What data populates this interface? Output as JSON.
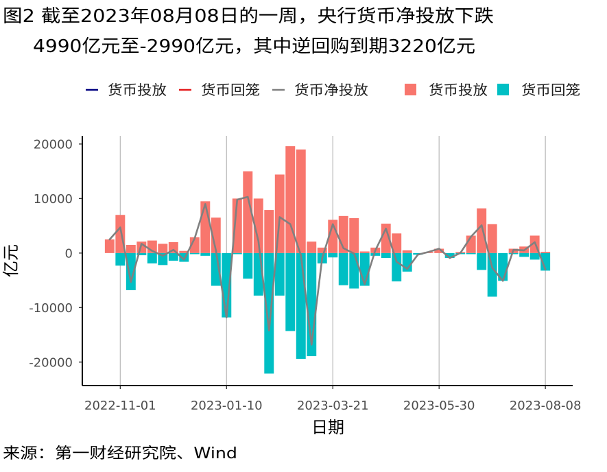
{
  "chart_data": {
    "type": "bar",
    "title": [
      "图2 截至2023年08月08日的一周，央行货币净投放下跌",
      "4990亿元至-2990亿元，其中逆回购到期3220亿元"
    ],
    "xlabel": "日期",
    "ylabel": "亿元",
    "x": [
      "2022-10-25",
      "2022-11-01",
      "2022-11-08",
      "2022-11-15",
      "2022-11-22",
      "2022-11-29",
      "2022-12-06",
      "2022-12-13",
      "2022-12-20",
      "2022-12-27",
      "2023-01-03",
      "2023-01-10",
      "2023-01-17",
      "2023-01-24",
      "2023-01-31",
      "2023-02-07",
      "2023-02-14",
      "2023-02-21",
      "2023-02-28",
      "2023-03-07",
      "2023-03-14",
      "2023-03-21",
      "2023-03-28",
      "2023-04-04",
      "2023-04-11",
      "2023-04-18",
      "2023-04-25",
      "2023-05-02",
      "2023-05-09",
      "2023-05-16",
      "2023-05-23",
      "2023-05-30",
      "2023-06-06",
      "2023-06-13",
      "2023-06-20",
      "2023-06-27",
      "2023-07-04",
      "2023-07-11",
      "2023-07-18",
      "2023-07-25",
      "2023-08-01",
      "2023-08-08"
    ],
    "series": [
      {
        "name": "货币投放",
        "type": "bar",
        "color": "#F8766D",
        "values": [
          2500,
          7000,
          1500,
          2100,
          2300,
          1700,
          2000,
          400,
          2900,
          9500,
          6500,
          0,
          10000,
          15000,
          10000,
          7900,
          14400,
          19600,
          19000,
          2100,
          1000,
          6100,
          6800,
          6400,
          300,
          1000,
          5400,
          3600,
          500,
          0,
          200,
          800,
          0,
          200,
          3200,
          8200,
          5300,
          0,
          800,
          1200,
          3200,
          230
        ]
      },
      {
        "name": "货币回笼",
        "type": "bar",
        "color": "#00BFC4",
        "values": [
          0,
          -2300,
          -6800,
          -400,
          -1900,
          -2200,
          -1400,
          -1600,
          -200,
          -500,
          -6000,
          -11800,
          -200,
          -4700,
          -7800,
          -22100,
          -7800,
          -14300,
          -19400,
          -18900,
          -1900,
          -800,
          -5900,
          -6500,
          -6000,
          -500,
          -900,
          -5200,
          -3400,
          -300,
          0,
          0,
          -900,
          -200,
          -200,
          -3100,
          -8000,
          -5100,
          -200,
          -700,
          -1200,
          -3220
        ]
      },
      {
        "name": "货币净投放",
        "type": "line",
        "color": "#808080",
        "values": [
          2500,
          4700,
          -5300,
          1700,
          400,
          -500,
          600,
          -1200,
          2700,
          9000,
          500,
          -11800,
          9800,
          10300,
          2200,
          -14200,
          6600,
          5300,
          -400,
          -16800,
          -900,
          5300,
          900,
          -100,
          -5700,
          500,
          4500,
          -1600,
          -2900,
          -300,
          200,
          800,
          -900,
          0,
          3000,
          5100,
          -2700,
          -5100,
          600,
          500,
          2000,
          -2990
        ]
      }
    ],
    "x_ticks": [
      "2022-11-01",
      "2023-01-10",
      "2023-03-21",
      "2023-05-30",
      "2023-08-08"
    ],
    "y_ticks": [
      20000,
      10000,
      0,
      -10000,
      -20000
    ],
    "y_tick_labels": [
      "20000",
      "10000",
      "0",
      "-10000",
      "-20000"
    ],
    "xlim": [
      "2022-10-07",
      "2023-08-26"
    ],
    "ylim": [
      -24300,
      21500
    ],
    "grid": {
      "x_major": true,
      "y_major": false
    },
    "legend": {
      "placement": "top",
      "line_keys": [
        {
          "label": "货币投放",
          "color": "#000080"
        },
        {
          "label": "货币回笼",
          "color": "#E41A1C"
        },
        {
          "label": "货币净投放",
          "color": "#808080"
        }
      ],
      "fill_keys": [
        {
          "label": "货币投放",
          "color": "#F8766D"
        },
        {
          "label": "货币回笼",
          "color": "#00BFC4"
        }
      ]
    }
  },
  "source": "来源：第一财经研究院、Wind"
}
